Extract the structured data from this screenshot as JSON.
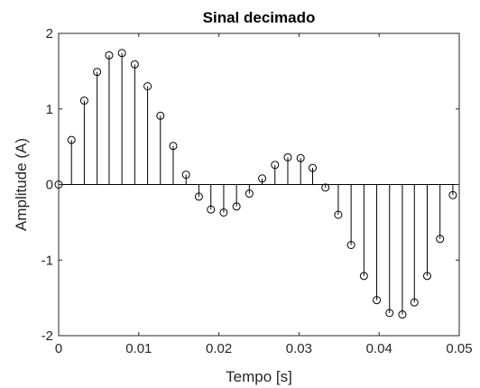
{
  "chart_data": {
    "type": "stem",
    "title": "Sinal decimado",
    "xlabel": "Tempo [s]",
    "ylabel": "Amplitude (A)",
    "xlim": [
      0,
      0.05
    ],
    "ylim": [
      -2,
      2
    ],
    "xticks": [
      0,
      0.01,
      0.02,
      0.03,
      0.04,
      0.05
    ],
    "xtick_labels": [
      "0",
      "0.01",
      "0.02",
      "0.03",
      "0.04",
      "0.05"
    ],
    "yticks": [
      -2,
      -1,
      0,
      1,
      2
    ],
    "ytick_labels": [
      "-2",
      "-1",
      "0",
      "1",
      "2"
    ],
    "grid": false,
    "series": [
      {
        "x": [
          0,
          0.0016,
          0.0032,
          0.0048,
          0.0063,
          0.0079,
          0.0095,
          0.0111,
          0.0127,
          0.0143,
          0.0159,
          0.0175,
          0.019,
          0.0206,
          0.0222,
          0.0238,
          0.0254,
          0.027,
          0.0286,
          0.0302,
          0.0317,
          0.0333,
          0.0349,
          0.0365,
          0.0381,
          0.0397,
          0.0413,
          0.0429,
          0.0444,
          0.046,
          0.0476,
          0.0492
        ],
        "y": [
          0,
          0.59,
          1.11,
          1.49,
          1.71,
          1.74,
          1.59,
          1.3,
          0.91,
          0.51,
          0.13,
          -0.16,
          -0.33,
          -0.37,
          -0.29,
          -0.12,
          0.08,
          0.26,
          0.36,
          0.35,
          0.22,
          -0.04,
          -0.4,
          -0.8,
          -1.21,
          -1.53,
          -1.7,
          -1.72,
          -1.56,
          -1.21,
          -0.72,
          -0.14
        ],
        "color": "#000000"
      }
    ]
  }
}
